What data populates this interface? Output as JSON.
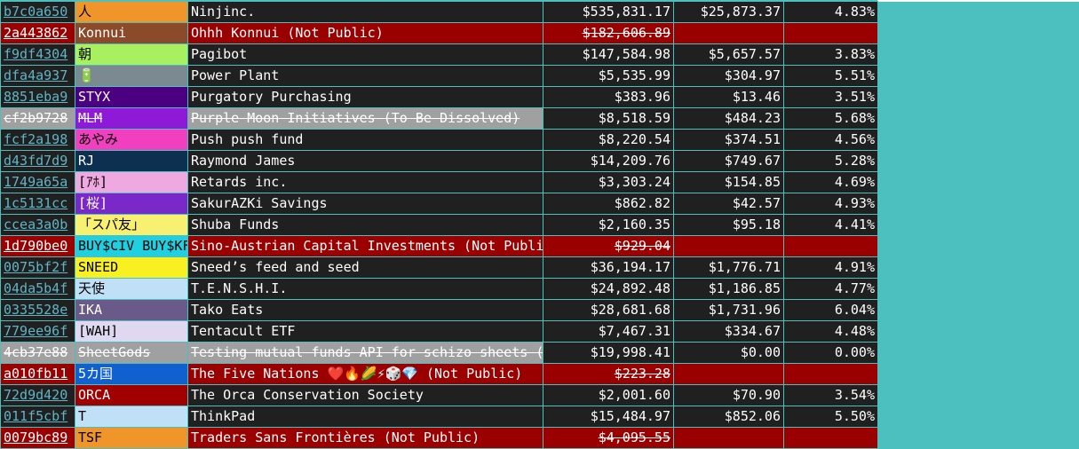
{
  "table": {
    "rows": [
      {
        "id": "b7c0a650",
        "tag": "人",
        "tag_bg": "#f0952a",
        "tag_fg": "#000000",
        "name": "Ninjinc.",
        "value": "$535,831.17",
        "dividend": "$25,873.37",
        "yield": "4.83%",
        "state": "normal"
      },
      {
        "id": "2a443862",
        "tag": "Konnui",
        "tag_bg": "#8b4a2a",
        "tag_fg": "#ffffff",
        "name": "Ohhh Konnui (Not Public)",
        "value": "$182,606.89",
        "state": "not_public"
      },
      {
        "id": "f9df4304",
        "tag": "朝",
        "tag_bg": "#a8f060",
        "tag_fg": "#000000",
        "name": "Pagibot",
        "value": "$147,584.98",
        "dividend": "$5,657.57",
        "yield": "3.83%",
        "state": "normal"
      },
      {
        "id": "dfa4a937",
        "tag": "🔋",
        "tag_bg": "#7a8a90",
        "tag_fg": "#000000",
        "name": "Power Plant",
        "value": "$5,535.99",
        "dividend": "$304.97",
        "yield": "5.51%",
        "state": "normal"
      },
      {
        "id": "8851eba9",
        "tag": "STYX",
        "tag_bg": "#4b0082",
        "tag_fg": "#ffffff",
        "name": "Purgatory Purchasing",
        "value": "$383.96",
        "dividend": "$13.46",
        "yield": "3.51%",
        "state": "normal"
      },
      {
        "id": "cf2b9728",
        "tag": "MLM",
        "tag_bg": "#8e1ad8",
        "tag_fg": "#ffffff",
        "name": "Purple Moon Initiatives (To Be Dissolved)",
        "value": "$8,518.59",
        "dividend": "$484.23",
        "yield": "5.68%",
        "state": "dissolved"
      },
      {
        "id": "fcf2a198",
        "tag": "あやみ",
        "tag_bg": "#f040c0",
        "tag_fg": "#000000",
        "name": "Push push fund",
        "value": "$8,220.54",
        "dividend": "$374.51",
        "yield": "4.56%",
        "state": "normal"
      },
      {
        "id": "d43fd7d9",
        "tag": "RJ",
        "tag_bg": "#0d3050",
        "tag_fg": "#ffffff",
        "name": "Raymond James",
        "value": "$14,209.76",
        "dividend": "$749.67",
        "yield": "5.28%",
        "state": "normal"
      },
      {
        "id": "1749a65a",
        "tag": "[ｱﾎ]",
        "tag_bg": "#f0a8e0",
        "tag_fg": "#000000",
        "name": "Retards inc.",
        "value": "$3,303.24",
        "dividend": "$154.85",
        "yield": "4.69%",
        "state": "normal"
      },
      {
        "id": "1c5131cc",
        "tag": "[桜]",
        "tag_bg": "#7a28c8",
        "tag_fg": "#ffffff",
        "name": "SakurAZKi Savings",
        "value": "$862.82",
        "dividend": "$42.57",
        "yield": "4.93%",
        "state": "normal"
      },
      {
        "id": "ccea3a0b",
        "tag": "「スパ友」",
        "tag_bg": "#f8f070",
        "tag_fg": "#000000",
        "name": "Shuba Funds",
        "value": "$2,160.35",
        "dividend": "$95.18",
        "yield": "4.41%",
        "state": "normal"
      },
      {
        "id": "1d790be0",
        "tag": "BUY$CIV BUY$KFI",
        "tag_bg": "#20d0e0",
        "tag_fg": "#000000",
        "name": "Sino-Austrian Capital Investments (Not Public)",
        "value": "$929.04",
        "state": "not_public"
      },
      {
        "id": "0075bf2f",
        "tag": "SNEED",
        "tag_bg": "#f8f020",
        "tag_fg": "#000000",
        "name": "Sneed’s feed and seed",
        "value": "$36,194.17",
        "dividend": "$1,776.71",
        "yield": "4.91%",
        "state": "normal"
      },
      {
        "id": "04da5b4f",
        "tag": "天使",
        "tag_bg": "#c0e0f8",
        "tag_fg": "#000000",
        "name": "T.E.N.S.H.I.",
        "value": "$24,892.48",
        "dividend": "$1,186.85",
        "yield": "4.77%",
        "state": "normal"
      },
      {
        "id": "0335528e",
        "tag": "IKA",
        "tag_bg": "#6a5a8a",
        "tag_fg": "#ffffff",
        "name": "Tako Eats",
        "value": "$28,681.68",
        "dividend": "$1,731.96",
        "yield": "6.04%",
        "state": "normal"
      },
      {
        "id": "779ee96f",
        "tag": "[WAH]",
        "tag_bg": "#e0d8f0",
        "tag_fg": "#000000",
        "name": "Tentacult ETF",
        "value": "$7,467.31",
        "dividend": "$334.67",
        "yield": "4.48%",
        "state": "normal"
      },
      {
        "id": "4cb37e88",
        "tag": "SheetGods",
        "tag_bg": "#a0a0a0",
        "tag_fg": "#ffffff",
        "name": "Testing mutual funds API for schizo sheets (To Be Dissolved)",
        "value": "$19,998.41",
        "dividend": "$0.00",
        "yield": "0.00%",
        "state": "dissolved"
      },
      {
        "id": "a010fb11",
        "tag": "5カ国",
        "tag_bg": "#1060d0",
        "tag_fg": "#ffffff",
        "name": "The Five Nations ❤️🔥🌽⚡🎲💎 (Not Public)",
        "value": "$223.28",
        "state": "not_public"
      },
      {
        "id": "72d9d420",
        "tag": "ORCA",
        "tag_bg": "#a00000",
        "tag_fg": "#ffffff",
        "name": "The Orca Conservation Society",
        "value": "$2,001.60",
        "dividend": "$70.90",
        "yield": "3.54%",
        "state": "normal"
      },
      {
        "id": "011f5cbf",
        "tag": "T",
        "tag_bg": "#c0e0f8",
        "tag_fg": "#000000",
        "name": "ThinkPad",
        "value": "$15,484.97",
        "dividend": "$852.06",
        "yield": "5.50%",
        "state": "normal"
      },
      {
        "id": "0079bc89",
        "tag": "TSF",
        "tag_bg": "#f0952a",
        "tag_fg": "#000000",
        "name": "Traders Sans Frontières (Not Public)",
        "value": "$4,095.55",
        "state": "not_public"
      }
    ]
  }
}
